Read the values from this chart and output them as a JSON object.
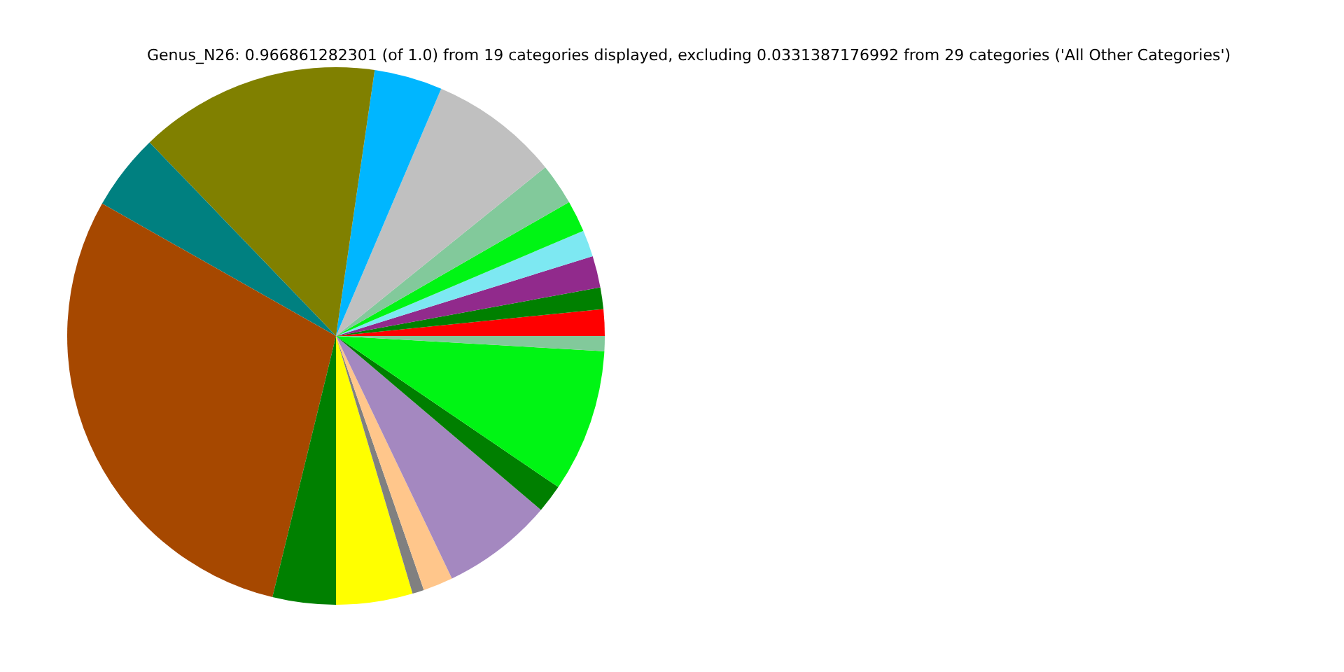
{
  "chart_data": {
    "type": "pie",
    "title": "Genus_N26: 0.966861282301 (of 1.0) from 19 categories displayed, excluding 0.0331387176992 from 29 categories ('All Other Categories')",
    "categories": [
      null,
      null,
      null,
      null,
      null,
      null,
      null,
      null,
      null,
      null,
      null,
      null,
      null,
      null,
      null,
      null,
      null,
      null,
      null
    ],
    "values": [
      1.6,
      1.3,
      1.9,
      1.6,
      1.9,
      2.5,
      7.8,
      4.1,
      14.5,
      4.6,
      29.4,
      3.8,
      4.6,
      0.7,
      1.8,
      6.7,
      1.7,
      8.6,
      0.9
    ],
    "colors": [
      "#ff0000",
      "#008000",
      "#912a8c",
      "#7de8f2",
      "#00f514",
      "#82c99b",
      "#c0c0c0",
      "#00b6ff",
      "#808000",
      "#008080",
      "#a64800",
      "#008000",
      "#ffff00",
      "#808080",
      "#ffc68b",
      "#a488c0",
      "#007f00",
      "#00f514",
      "#82c99b"
    ]
  }
}
